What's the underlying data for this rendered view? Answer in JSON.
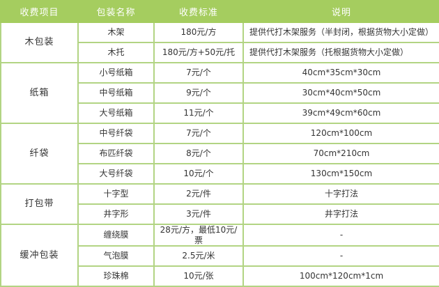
{
  "table": {
    "headers": {
      "fee_item": "收费项目",
      "package_name": "包装名称",
      "fee_standard": "收费标准",
      "description": "说明"
    },
    "groups": [
      {
        "name": "木包装",
        "rows": [
          {
            "package": "木架",
            "price": "180元/方",
            "note": "提供代打木架服务（半封闭，根据货物大小定做）"
          },
          {
            "package": "木托",
            "price": "180元/方+50元/托",
            "note": "提供代打木架服务（托根据货物大小定做）"
          }
        ]
      },
      {
        "name": "纸箱",
        "rows": [
          {
            "package": "小号纸箱",
            "price": "7元/个",
            "note": "40cm*35cm*30cm"
          },
          {
            "package": "中号纸箱",
            "price": "9元/个",
            "note": "30cm*40cm*50cm"
          },
          {
            "package": "大号纸箱",
            "price": "11元/个",
            "note": "39cm*49cm*60cm"
          }
        ]
      },
      {
        "name": "纤袋",
        "rows": [
          {
            "package": "中号纤袋",
            "price": "7元/个",
            "note": "120cm*100cm"
          },
          {
            "package": "布匹纤袋",
            "price": "8元/个",
            "note": "70cm*210cm"
          },
          {
            "package": "大号纤袋",
            "price": "10元/个",
            "note": "130cm*150cm"
          }
        ]
      },
      {
        "name": "打包带",
        "rows": [
          {
            "package": "十字型",
            "price": "2元/件",
            "note": "十字打法"
          },
          {
            "package": "井字形",
            "price": "3元/件",
            "note": "井字打法"
          }
        ]
      },
      {
        "name": "缓冲包装",
        "rows": [
          {
            "package": "缠绕膜",
            "price": "28元/方，最低10元/票",
            "note": "-"
          },
          {
            "package": "气泡膜",
            "price": "2.5元/米",
            "note": "-"
          },
          {
            "package": "珍珠棉",
            "price": "10元/张",
            "note": "100cm*120cm*1cm"
          }
        ]
      }
    ],
    "colors": {
      "header_bg": "#a5cd5f",
      "header_text": "#ffffff",
      "border": "#b2d483",
      "cell_text": "#333333",
      "cell_bg": "#ffffff"
    }
  }
}
